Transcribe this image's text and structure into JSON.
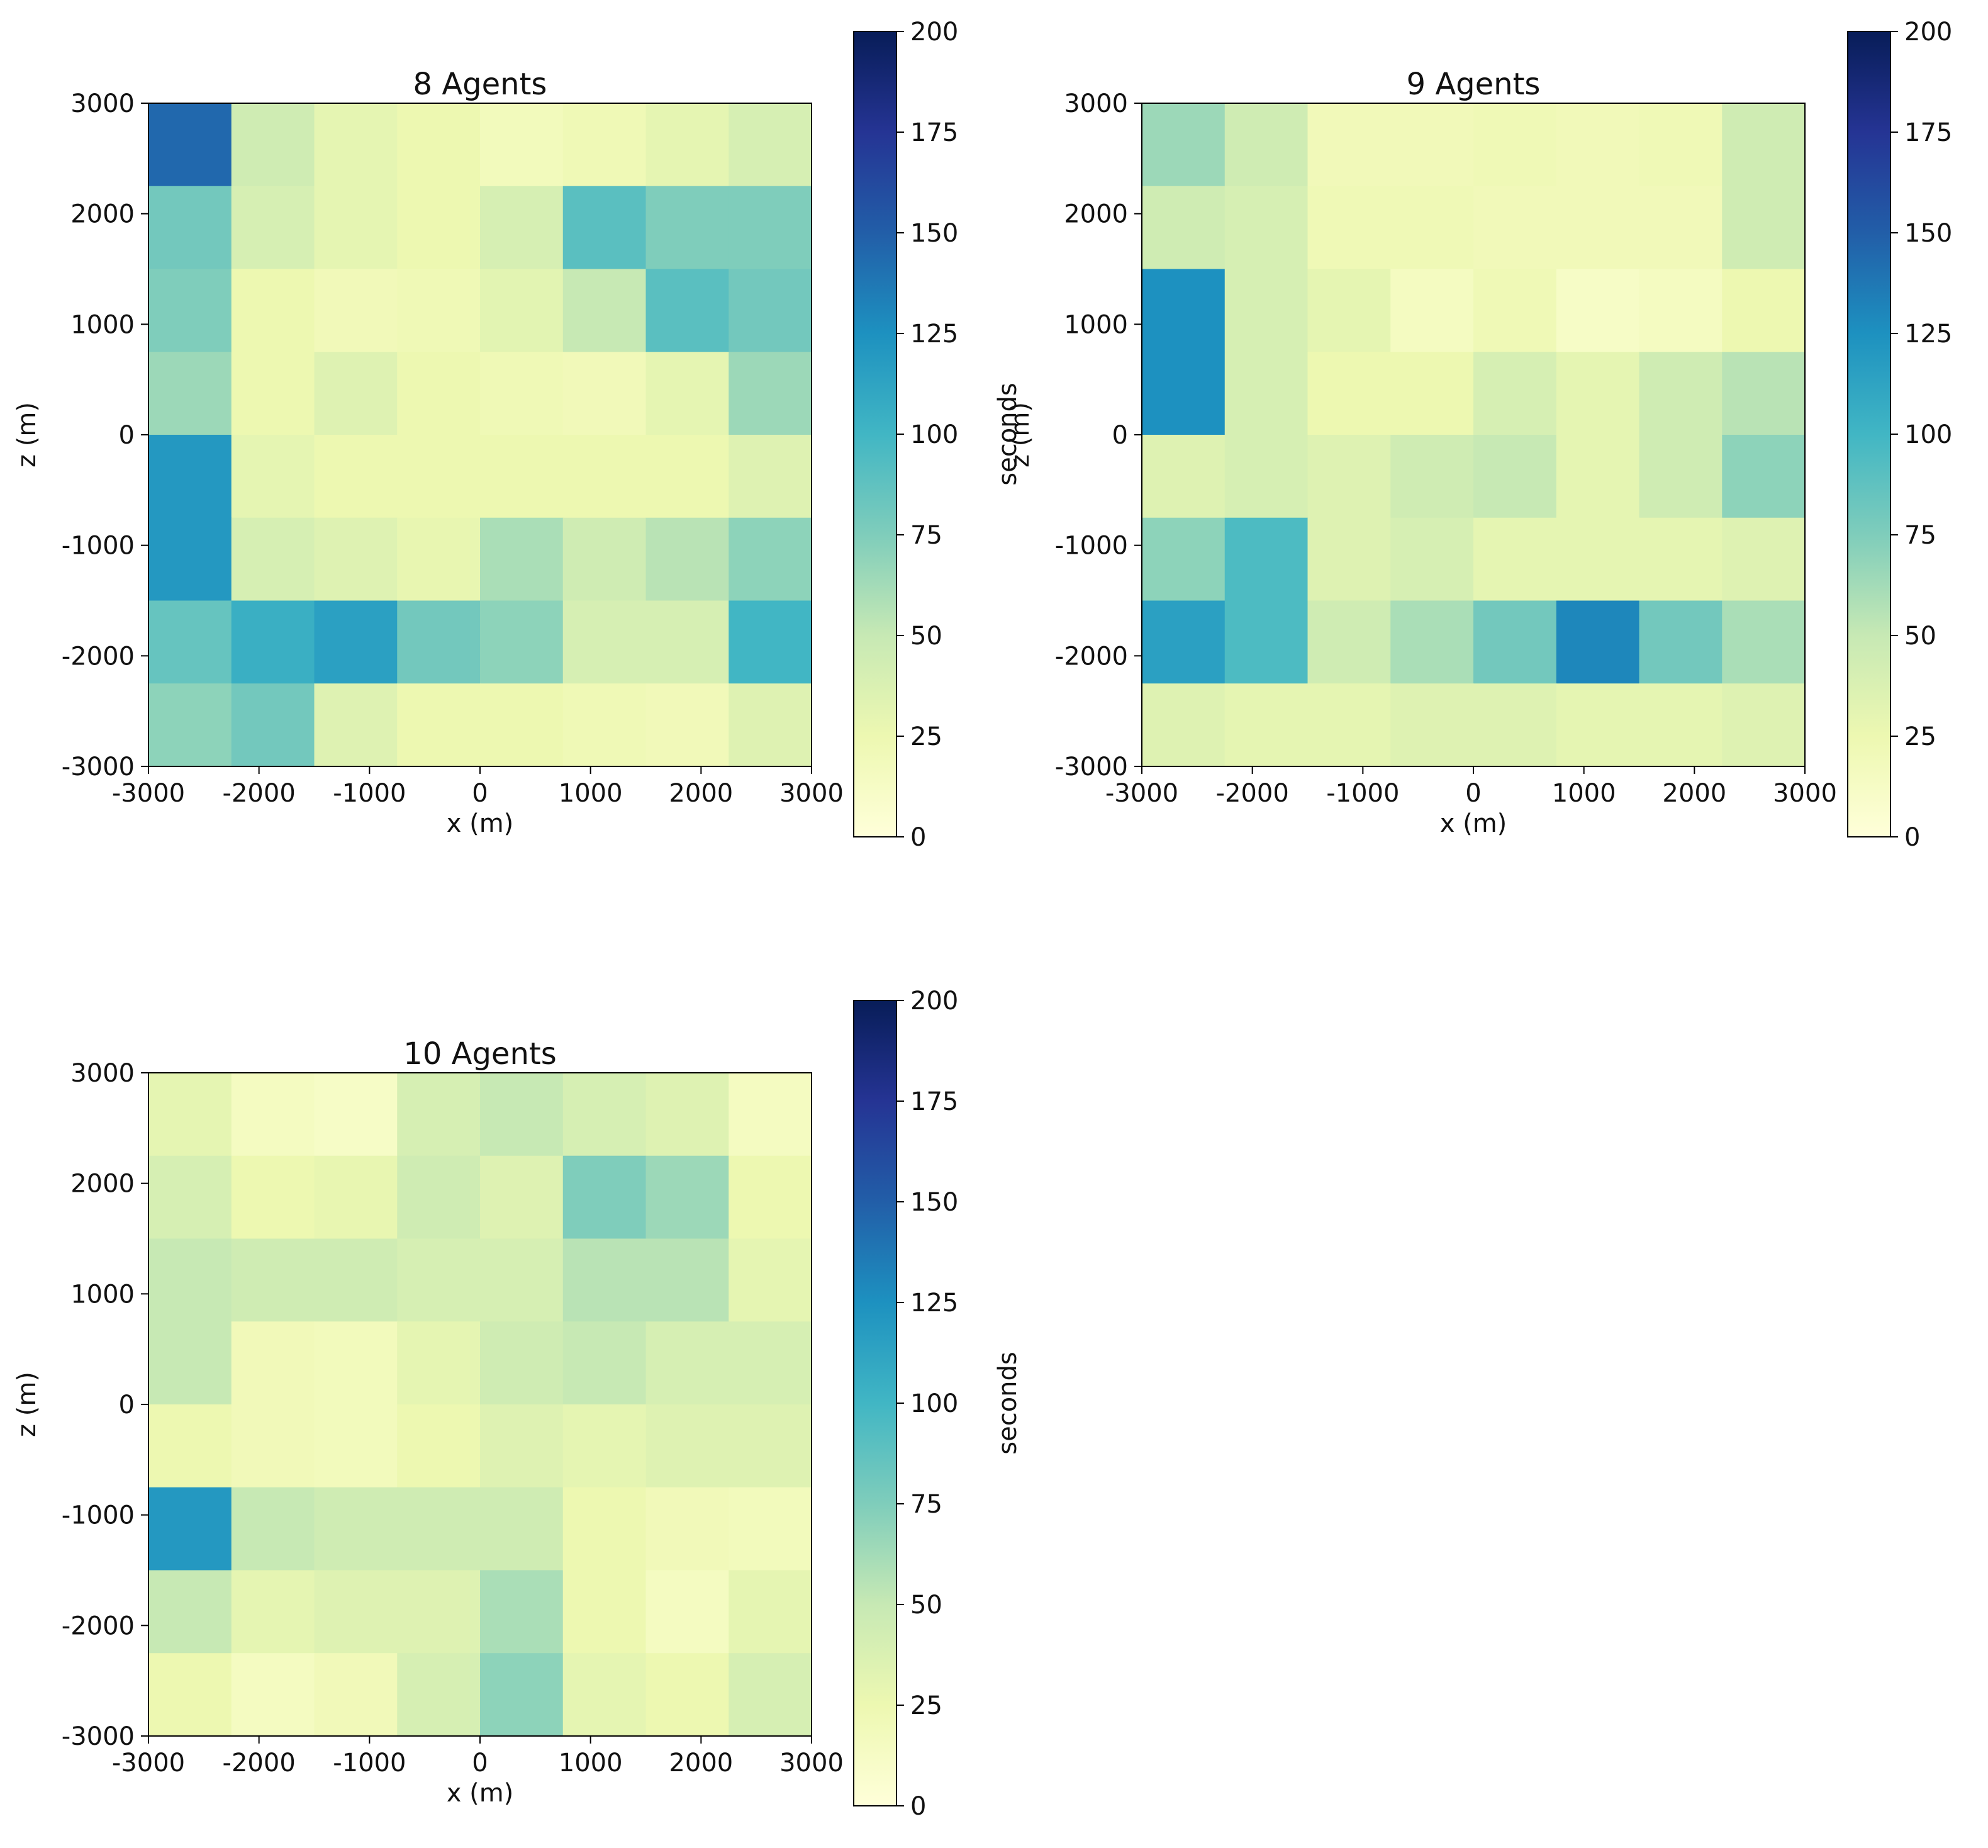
{
  "colorbar": {
    "label": "seconds",
    "vmin": 0,
    "vmax": 200,
    "ticks": [
      0,
      25,
      50,
      75,
      100,
      125,
      150,
      175,
      200
    ],
    "colormap": "YlGnBu",
    "stops": [
      "#ffffd9",
      "#edf8b1",
      "#c7e9b4",
      "#7fcdbb",
      "#41b6c4",
      "#1d91c0",
      "#225ea8",
      "#253494",
      "#081d58"
    ]
  },
  "chart_data": [
    {
      "type": "heatmap",
      "title": "8 Agents",
      "xlabel": "x (m)",
      "ylabel": "z (m)",
      "xlim": [
        -3000,
        3000
      ],
      "ylim": [
        -3000,
        3000
      ],
      "xticks": [
        "-3000",
        "-2000",
        "-1000",
        "0",
        "1000",
        "2000",
        "3000"
      ],
      "yticks": [
        "3000",
        "2000",
        "1000",
        "0",
        "-1000",
        "-2000",
        "-3000"
      ],
      "grid": false,
      "values_rows_top_to_bottom": [
        [
          145,
          45,
          30,
          25,
          18,
          22,
          30,
          40
        ],
        [
          80,
          40,
          30,
          25,
          40,
          90,
          75,
          75
        ],
        [
          75,
          25,
          20,
          22,
          32,
          50,
          90,
          80
        ],
        [
          65,
          25,
          35,
          25,
          22,
          20,
          30,
          65
        ],
        [
          120,
          30,
          25,
          25,
          25,
          25,
          25,
          35
        ],
        [
          120,
          40,
          35,
          28,
          60,
          45,
          55,
          70
        ],
        [
          85,
          105,
          115,
          80,
          70,
          40,
          40,
          100
        ],
        [
          70,
          80,
          35,
          25,
          25,
          22,
          20,
          35
        ]
      ]
    },
    {
      "type": "heatmap",
      "title": "9 Agents",
      "xlabel": "x (m)",
      "ylabel": "z (m)",
      "xlim": [
        -3000,
        3000
      ],
      "ylim": [
        -3000,
        3000
      ],
      "xticks": [
        "-3000",
        "-2000",
        "-1000",
        "0",
        "1000",
        "2000",
        "3000"
      ],
      "yticks": [
        "3000",
        "2000",
        "1000",
        "0",
        "-1000",
        "-2000",
        "-3000"
      ],
      "grid": false,
      "values_rows_top_to_bottom": [
        [
          65,
          45,
          20,
          20,
          22,
          20,
          22,
          45
        ],
        [
          45,
          40,
          22,
          22,
          20,
          20,
          20,
          45
        ],
        [
          125,
          40,
          30,
          15,
          22,
          12,
          15,
          25
        ],
        [
          125,
          40,
          25,
          25,
          40,
          30,
          45,
          55
        ],
        [
          35,
          40,
          35,
          45,
          50,
          30,
          45,
          70
        ],
        [
          70,
          95,
          35,
          40,
          30,
          30,
          30,
          35
        ],
        [
          115,
          95,
          45,
          60,
          80,
          130,
          80,
          60
        ],
        [
          35,
          30,
          30,
          35,
          35,
          30,
          30,
          35
        ]
      ]
    },
    {
      "type": "heatmap",
      "title": "10 Agents",
      "xlabel": "x (m)",
      "ylabel": "z (m)",
      "xlim": [
        -3000,
        3000
      ],
      "ylim": [
        -3000,
        3000
      ],
      "xticks": [
        "-3000",
        "-2000",
        "-1000",
        "0",
        "1000",
        "2000",
        "3000"
      ],
      "yticks": [
        "3000",
        "2000",
        "1000",
        "0",
        "-1000",
        "-2000",
        "-3000"
      ],
      "grid": false,
      "values_rows_top_to_bottom": [
        [
          30,
          15,
          12,
          40,
          50,
          40,
          35,
          15
        ],
        [
          40,
          25,
          28,
          45,
          35,
          75,
          65,
          25
        ],
        [
          50,
          45,
          45,
          40,
          40,
          55,
          55,
          30
        ],
        [
          50,
          20,
          18,
          30,
          45,
          50,
          40,
          40
        ],
        [
          25,
          20,
          18,
          25,
          35,
          30,
          35,
          35
        ],
        [
          120,
          50,
          45,
          45,
          45,
          25,
          20,
          18
        ],
        [
          50,
          30,
          35,
          35,
          60,
          25,
          15,
          30
        ],
        [
          25,
          15,
          20,
          40,
          70,
          30,
          25,
          40
        ]
      ]
    }
  ]
}
